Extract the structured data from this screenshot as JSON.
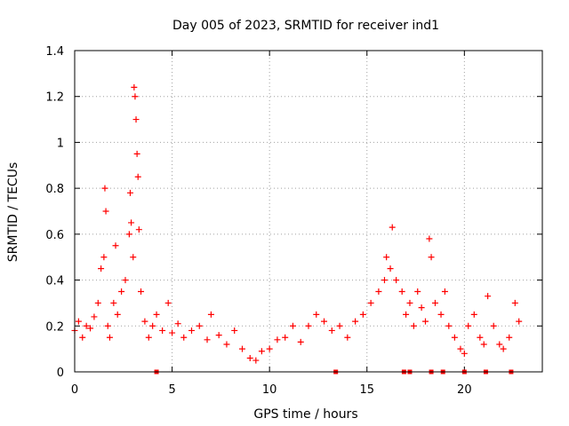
{
  "chart_data": {
    "type": "scatter",
    "title": "Day 005 of 2023, SRMTID for receiver ind1",
    "xlabel": "GPS time / hours",
    "ylabel": "SRMTID / TECUs",
    "xlim": [
      0,
      24
    ],
    "ylim": [
      0,
      1.4
    ],
    "x_ticks": [
      0,
      5,
      10,
      15,
      20
    ],
    "x_tick_labels": [
      "0",
      "5",
      "10",
      "15",
      "20"
    ],
    "y_ticks": [
      0,
      0.2,
      0.4,
      0.6,
      0.8,
      1.0,
      1.2,
      1.4
    ],
    "y_tick_labels": [
      "0",
      "0.2",
      "0.4",
      "0.6",
      "0.8",
      "1",
      "1.2",
      "1.4"
    ],
    "grid": true,
    "marker": "plus",
    "series": [
      {
        "name": "SRMTID",
        "color": "#ff0000",
        "x": [
          0.0,
          0.2,
          0.4,
          0.6,
          0.8,
          1.0,
          1.2,
          1.35,
          1.5,
          1.55,
          1.6,
          1.7,
          1.8,
          2.0,
          2.1,
          2.2,
          2.4,
          2.6,
          2.8,
          2.85,
          2.9,
          3.0,
          3.05,
          3.1,
          3.15,
          3.2,
          3.25,
          3.3,
          3.4,
          3.6,
          3.8,
          4.0,
          4.2,
          4.5,
          4.8,
          5.0,
          5.3,
          5.6,
          6.0,
          6.4,
          6.8,
          7.0,
          7.4,
          7.8,
          8.2,
          8.6,
          9.0,
          9.3,
          9.6,
          10.0,
          10.4,
          10.8,
          11.2,
          11.6,
          12.0,
          12.4,
          12.8,
          13.2,
          13.6,
          14.0,
          14.4,
          14.8,
          15.2,
          15.6,
          15.9,
          16.0,
          16.2,
          16.3,
          16.5,
          16.8,
          17.0,
          17.2,
          17.4,
          17.6,
          17.8,
          18.0,
          18.2,
          18.3,
          18.5,
          18.8,
          19.0,
          19.2,
          19.5,
          19.8,
          20.0,
          20.2,
          20.5,
          20.8,
          21.0,
          21.2,
          21.5,
          21.8,
          22.0,
          22.3,
          22.6,
          22.8
        ],
        "y": [
          0.18,
          0.22,
          0.15,
          0.2,
          0.19,
          0.24,
          0.3,
          0.45,
          0.5,
          0.8,
          0.7,
          0.2,
          0.15,
          0.3,
          0.55,
          0.25,
          0.35,
          0.4,
          0.6,
          0.78,
          0.65,
          0.5,
          1.24,
          1.2,
          1.1,
          0.95,
          0.85,
          0.62,
          0.35,
          0.22,
          0.15,
          0.2,
          0.25,
          0.18,
          0.3,
          0.17,
          0.21,
          0.15,
          0.18,
          0.2,
          0.14,
          0.25,
          0.16,
          0.12,
          0.18,
          0.1,
          0.06,
          0.05,
          0.09,
          0.1,
          0.14,
          0.15,
          0.2,
          0.13,
          0.2,
          0.25,
          0.22,
          0.18,
          0.2,
          0.15,
          0.22,
          0.25,
          0.3,
          0.35,
          0.4,
          0.5,
          0.45,
          0.63,
          0.4,
          0.35,
          0.25,
          0.3,
          0.2,
          0.35,
          0.28,
          0.22,
          0.58,
          0.5,
          0.3,
          0.25,
          0.35,
          0.2,
          0.15,
          0.1,
          0.08,
          0.2,
          0.25,
          0.15,
          0.12,
          0.33,
          0.2,
          0.12,
          0.1,
          0.15,
          0.3,
          0.22
        ]
      }
    ],
    "zero_markers_x": [
      4.2,
      13.4,
      16.9,
      17.2,
      18.3,
      18.9,
      20.0,
      21.1,
      22.4
    ]
  }
}
